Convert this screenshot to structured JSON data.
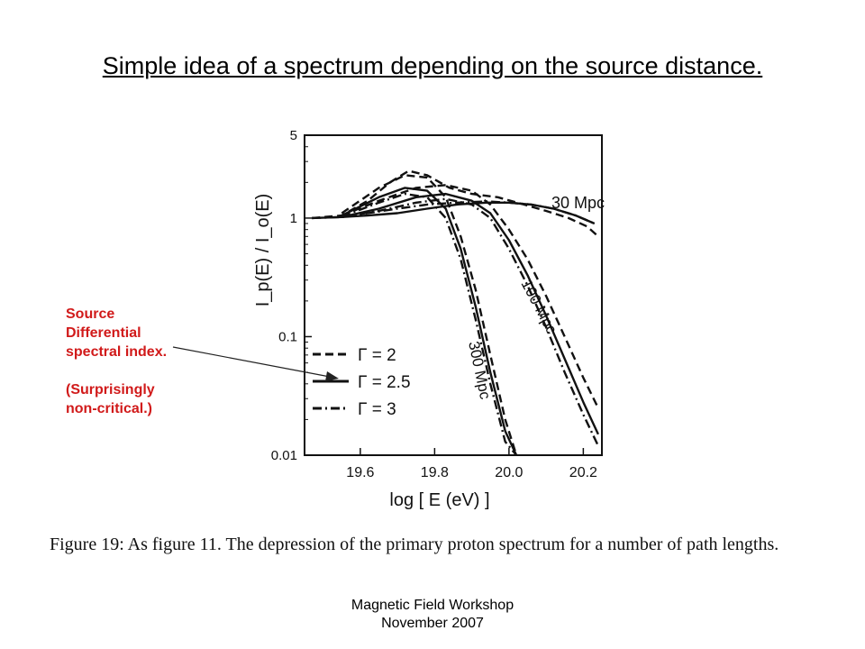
{
  "slide": {
    "title": "Simple idea of a spectrum depending on the source distance.",
    "annotation_lines": [
      "Source",
      "Differential",
      "spectral index."
    ],
    "annotation_note_lines": [
      "(Surprisingly",
      "non-critical.)"
    ],
    "caption": "Figure 19: As figure 11. The depression of the primary proton spectrum for a number of path lengths.",
    "footer_line1": "Magnetic Field Workshop",
    "footer_line2": "November 2007",
    "accent_color": "#d11a1a"
  },
  "chart_data": {
    "type": "line",
    "xlabel": "log [ E (eV) ]",
    "ylabel": "I_p(E) / I_o(E)",
    "xlim": [
      19.45,
      20.25
    ],
    "ylim": [
      0.01,
      5
    ],
    "yscale": "log",
    "xticks": [
      "19.6",
      "19.8",
      "20.0",
      "20.2"
    ],
    "yticks": [
      "5",
      "1",
      "0.1",
      "0.01"
    ],
    "annotations": [
      "30 Mpc",
      "100 Mpc",
      "300 Mpc"
    ],
    "legend": {
      "placement": "lower-left",
      "entries": [
        {
          "label": "Γ = 2",
          "style": "dashed"
        },
        {
          "label": "Γ = 2.5",
          "style": "solid"
        },
        {
          "label": "Γ = 3",
          "style": "dash-dot"
        }
      ]
    },
    "series": [
      {
        "distance": "30 Mpc",
        "style": "dashed",
        "x": [
          19.47,
          19.55,
          19.62,
          19.68,
          19.73,
          19.78,
          19.84,
          19.9,
          19.97,
          20.04,
          20.1,
          20.16,
          20.21,
          20.24
        ],
        "y": [
          1.0,
          1.05,
          1.4,
          2.0,
          2.5,
          2.3,
          1.8,
          1.6,
          1.5,
          1.3,
          1.15,
          1.0,
          0.85,
          0.7
        ]
      },
      {
        "distance": "30 Mpc",
        "style": "solid",
        "x": [
          19.47,
          19.55,
          19.62,
          19.7,
          19.78,
          19.86,
          19.94,
          20.0,
          20.06,
          20.12,
          20.18,
          20.23
        ],
        "y": [
          1.0,
          1.02,
          1.05,
          1.1,
          1.2,
          1.3,
          1.35,
          1.35,
          1.3,
          1.2,
          1.05,
          0.9
        ]
      },
      {
        "distance": "30 Mpc",
        "style": "dash-dot",
        "x": [
          19.47,
          19.55,
          19.62,
          19.7,
          19.78,
          19.86,
          19.94,
          20.0,
          20.06,
          20.12,
          20.18,
          20.23
        ],
        "y": [
          1.0,
          1.02,
          1.1,
          1.2,
          1.3,
          1.35,
          1.38,
          1.35,
          1.3,
          1.2,
          1.05,
          0.9
        ]
      },
      {
        "distance": "100 Mpc",
        "style": "dashed",
        "x": [
          19.55,
          19.65,
          19.75,
          19.83,
          19.9,
          19.95,
          20.0,
          20.05,
          20.1,
          20.15,
          20.2,
          20.24
        ],
        "y": [
          1.05,
          1.4,
          1.8,
          1.9,
          1.7,
          1.3,
          0.8,
          0.45,
          0.22,
          0.1,
          0.045,
          0.025
        ]
      },
      {
        "distance": "100 Mpc",
        "style": "solid",
        "x": [
          19.55,
          19.65,
          19.75,
          19.83,
          19.9,
          19.95,
          20.0,
          20.05,
          20.1,
          20.15,
          20.2,
          20.24
        ],
        "y": [
          1.02,
          1.2,
          1.5,
          1.6,
          1.4,
          1.1,
          0.65,
          0.33,
          0.15,
          0.065,
          0.028,
          0.015
        ]
      },
      {
        "distance": "100 Mpc",
        "style": "dash-dot",
        "x": [
          19.55,
          19.65,
          19.75,
          19.83,
          19.9,
          19.95,
          20.0,
          20.05,
          20.1,
          20.15,
          20.2,
          20.24
        ],
        "y": [
          1.02,
          1.15,
          1.35,
          1.45,
          1.3,
          1.0,
          0.55,
          0.27,
          0.12,
          0.05,
          0.022,
          0.012
        ]
      },
      {
        "distance": "300 Mpc",
        "style": "dashed",
        "x": [
          19.55,
          19.65,
          19.72,
          19.78,
          19.83,
          19.87,
          19.91,
          19.95,
          19.99,
          20.02
        ],
        "y": [
          1.1,
          1.8,
          2.3,
          2.2,
          1.5,
          0.7,
          0.25,
          0.07,
          0.02,
          0.01
        ]
      },
      {
        "distance": "300 Mpc",
        "style": "solid",
        "x": [
          19.55,
          19.65,
          19.72,
          19.78,
          19.83,
          19.87,
          19.91,
          19.95,
          19.99,
          20.02
        ],
        "y": [
          1.05,
          1.5,
          1.8,
          1.7,
          1.2,
          0.55,
          0.18,
          0.05,
          0.016,
          0.01
        ]
      },
      {
        "distance": "300 Mpc",
        "style": "dash-dot",
        "x": [
          19.55,
          19.65,
          19.72,
          19.78,
          19.83,
          19.87,
          19.91,
          19.95,
          19.99,
          20.02
        ],
        "y": [
          1.03,
          1.35,
          1.6,
          1.5,
          1.0,
          0.45,
          0.14,
          0.04,
          0.013,
          0.01
        ]
      }
    ]
  }
}
